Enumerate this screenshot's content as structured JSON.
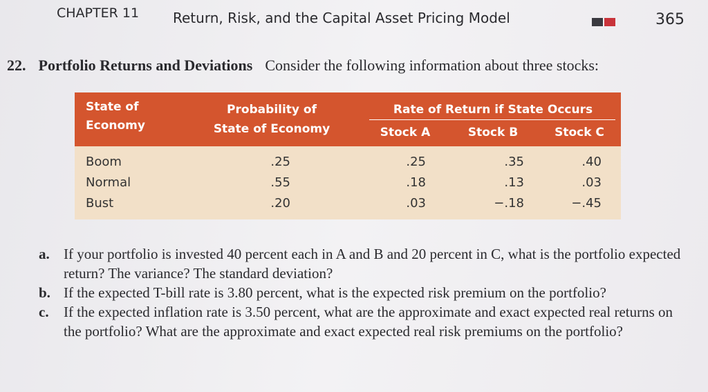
{
  "header": {
    "chapter": "CHAPTER 11",
    "title": "Return, Risk, and the Capital Asset Pricing Model",
    "page": "365"
  },
  "problem": {
    "number": "22.",
    "title": "Portfolio Returns and Deviations",
    "intro": "Consider the following information about three stocks:"
  },
  "table": {
    "header": {
      "state": [
        "State of",
        "Economy"
      ],
      "probability": [
        "Probability of",
        "State of Economy"
      ],
      "group": "Rate of Return if State Occurs",
      "stocks": [
        "Stock A",
        "Stock B",
        "Stock C"
      ]
    },
    "rows": [
      [
        "Boom",
        ".25",
        ".25",
        ".35",
        ".40"
      ],
      [
        "Normal",
        ".55",
        ".18",
        ".13",
        ".03"
      ],
      [
        "Bust",
        ".20",
        ".03",
        "−.18",
        "−.45"
      ]
    ]
  },
  "questions": [
    {
      "label": "a.",
      "text": "If your portfolio is invested 40 percent each in A and B and 20 percent in C, what is the portfolio expected return? The variance? The standard deviation?"
    },
    {
      "label": "b.",
      "text": "If the expected T-bill rate is 3.80 percent, what is the expected risk premium on the portfolio?"
    },
    {
      "label": "c.",
      "text": "If the expected inflation rate is 3.50 percent, what are the approximate and exact expected real returns on the portfolio? What are the approximate and exact expected real risk premiums on the portfolio?"
    }
  ]
}
